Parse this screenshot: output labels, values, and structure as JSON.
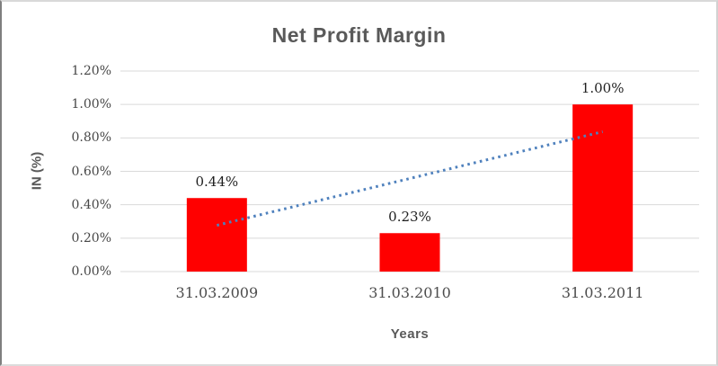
{
  "chart": {
    "title": "Net Profit Margin",
    "x_axis_title": "Years",
    "y_axis_title": "IN (%)"
  },
  "chart_data": {
    "type": "bar",
    "title": "Net Profit Margin",
    "xlabel": "Years",
    "ylabel": "IN (%)",
    "categories": [
      "31.03.2009",
      "31.03.2010",
      "31.03.2011"
    ],
    "values": [
      0.44,
      0.23,
      1.0
    ],
    "data_labels": [
      "0.44%",
      "0.23%",
      "1.00%"
    ],
    "ylim": [
      0,
      1.2
    ],
    "ytick_step": 0.2,
    "ytick_labels": [
      "0.00%",
      "0.20%",
      "0.40%",
      "0.60%",
      "0.80%",
      "1.00%",
      "1.20%"
    ],
    "grid": true,
    "legend": false,
    "bar_color": "#ff0000",
    "gridline_color": "#d9d9d9",
    "title_color": "#595959",
    "trendline": {
      "type": "linear",
      "style": "dotted",
      "color": "#4f81bd",
      "start_value": 0.277,
      "end_value": 0.837
    }
  }
}
